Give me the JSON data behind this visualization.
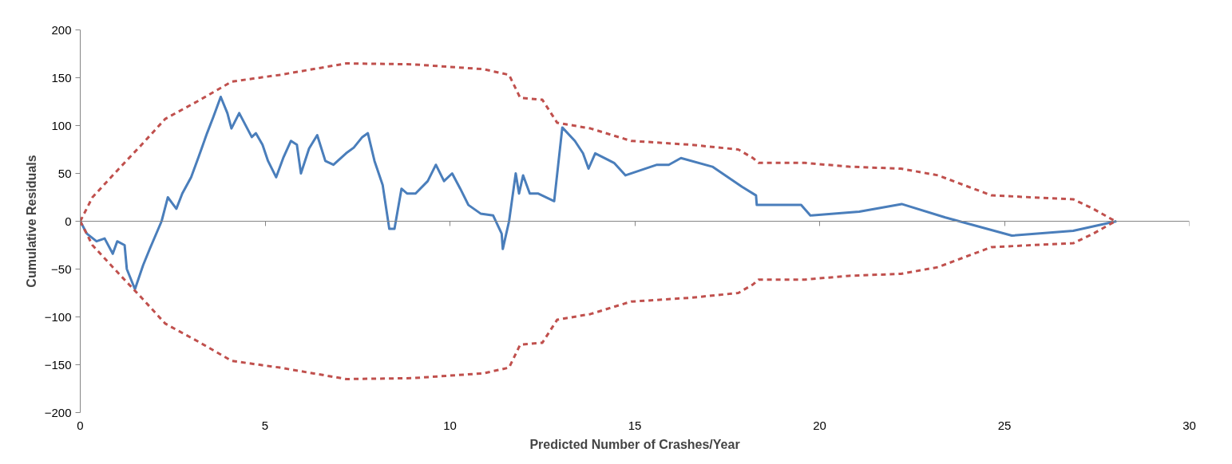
{
  "chart_data": {
    "type": "line",
    "xlabel": "Predicted Number of Crashes/Year",
    "ylabel": "Cumulative Residuals",
    "xlim": [
      0,
      30
    ],
    "xticks": [
      0,
      5,
      10,
      15,
      20,
      25,
      30
    ],
    "ylim": [
      -200,
      200
    ],
    "yticks": [
      -200,
      -150,
      -100,
      -50,
      0,
      50,
      100,
      150,
      200
    ],
    "series": [
      {
        "color": "#4a7ebb",
        "line_style": "solid",
        "x": [
          0,
          0.18,
          0.44,
          0.66,
          0.88,
          1.0,
          1.2,
          1.26,
          1.48,
          1.7,
          1.88,
          2.2,
          2.37,
          2.6,
          2.76,
          3.0,
          3.2,
          3.43,
          3.6,
          3.8,
          3.98,
          4.09,
          4.3,
          4.64,
          4.75,
          4.93,
          5.08,
          5.3,
          5.5,
          5.7,
          5.86,
          5.97,
          6.19,
          6.41,
          6.63,
          6.85,
          7.19,
          7.4,
          7.63,
          7.78,
          7.96,
          8.18,
          8.36,
          8.5,
          8.69,
          8.84,
          9.07,
          9.4,
          9.62,
          9.84,
          10.06,
          10.28,
          10.5,
          10.83,
          11.17,
          11.4,
          11.43,
          11.6,
          11.78,
          11.87,
          11.98,
          12.16,
          12.38,
          12.82,
          13.04,
          13.38,
          13.6,
          13.75,
          13.93,
          14.44,
          14.75,
          15.6,
          15.92,
          16.25,
          17.1,
          17.9,
          18.28,
          18.3,
          19.5,
          19.75,
          21.07,
          22.22,
          23.4,
          25.2,
          26.86,
          28.03
        ],
        "values": [
          0,
          -13,
          -21,
          -18,
          -34,
          -21,
          -25,
          -50,
          -71,
          -46,
          -29,
          0,
          25,
          13,
          29,
          46,
          67,
          92,
          109,
          130,
          113,
          97,
          113,
          88,
          92,
          80,
          63,
          46,
          67,
          84,
          80,
          50,
          76,
          90,
          63,
          59,
          71,
          77,
          88,
          92,
          63,
          38,
          -8,
          -8,
          34,
          29,
          29,
          42,
          59,
          42,
          50,
          34,
          17,
          8,
          6,
          -13,
          -29,
          0,
          50,
          29,
          48,
          29,
          29,
          21,
          98,
          84,
          71,
          55,
          71,
          61,
          48,
          59,
          59,
          66,
          57,
          36,
          27,
          17,
          17,
          6,
          10,
          18,
          4,
          -15,
          -10,
          0
        ]
      },
      {
        "color": "#c0504d",
        "line_style": "dashed",
        "x": [
          0,
          0.33,
          1.0,
          1.66,
          2.3,
          3.2,
          4.1,
          5.4,
          7.2,
          9.0,
          10.9,
          11.6,
          11.9,
          12.5,
          12.9,
          13.8,
          14.9,
          16.5,
          17.8,
          18.2,
          18.35,
          19.6,
          20.8,
          22.2,
          23.2,
          24.65,
          26.86,
          27.4,
          28.0
        ],
        "values": [
          0,
          25,
          53,
          80,
          107,
          126,
          146,
          153,
          165,
          164,
          159,
          153,
          129,
          127,
          103,
          97,
          84,
          80,
          75,
          66,
          61,
          61,
          57,
          55,
          48,
          27,
          23,
          13,
          0
        ]
      },
      {
        "color": "#c0504d",
        "line_style": "dashed",
        "x": [
          0,
          0.33,
          1.0,
          1.66,
          2.3,
          3.2,
          4.1,
          5.4,
          7.2,
          9.0,
          10.9,
          11.6,
          11.9,
          12.5,
          12.9,
          13.8,
          14.9,
          16.5,
          17.8,
          18.2,
          18.35,
          19.6,
          20.8,
          22.2,
          23.2,
          24.65,
          26.86,
          27.4,
          28.0
        ],
        "values": [
          0,
          -25,
          -53,
          -80,
          -107,
          -126,
          -146,
          -153,
          -165,
          -164,
          -159,
          -153,
          -129,
          -127,
          -103,
          -97,
          -84,
          -80,
          -75,
          -66,
          -61,
          -61,
          -57,
          -55,
          -48,
          -27,
          -23,
          -13,
          0
        ]
      }
    ]
  }
}
